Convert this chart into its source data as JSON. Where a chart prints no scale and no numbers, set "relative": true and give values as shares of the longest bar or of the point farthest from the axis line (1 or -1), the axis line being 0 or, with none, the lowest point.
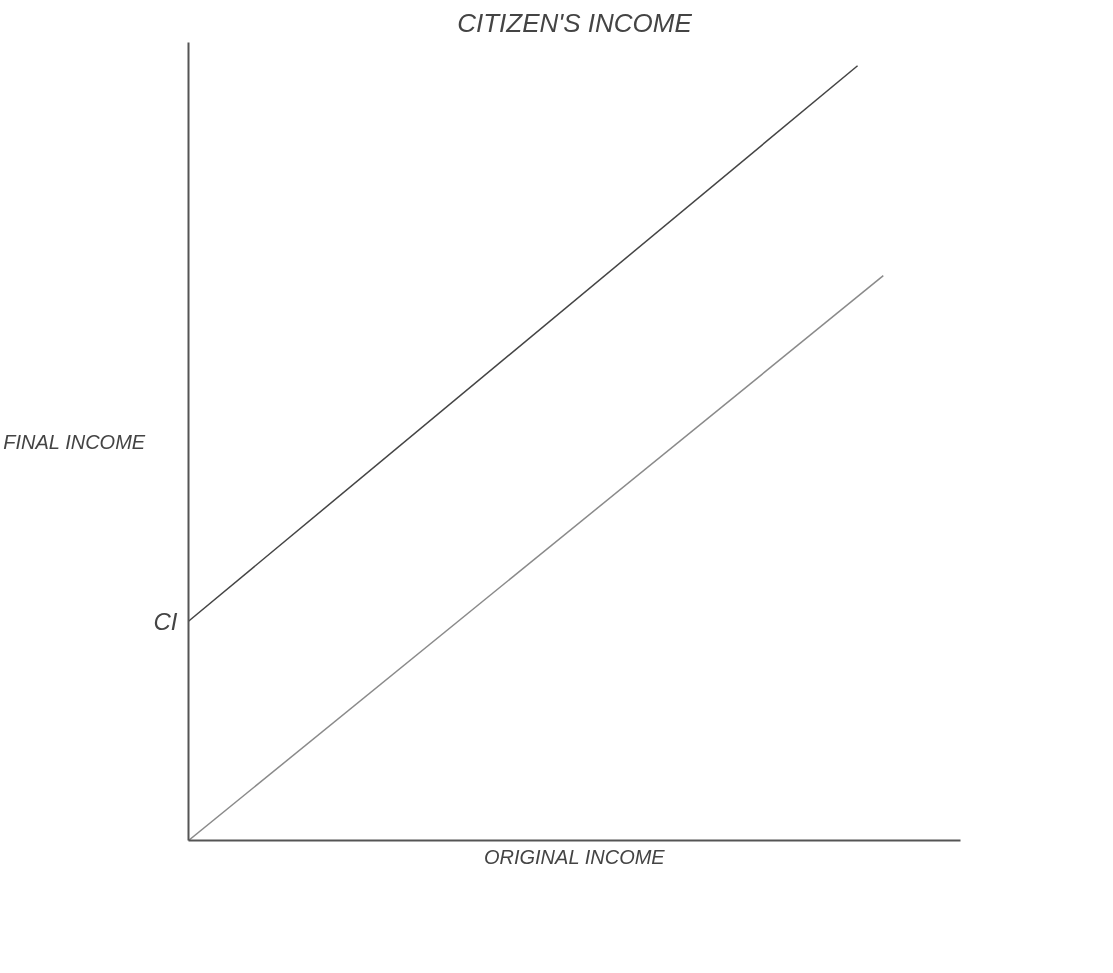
{
  "chart_data": {
    "type": "line",
    "title": "CITIZEN'S INCOME",
    "xlabel": "ORIGINAL INCOME",
    "ylabel": "FINAL INCOME",
    "relative": true,
    "categories": [
      null,
      null,
      null,
      null,
      null,
      null,
      null,
      null,
      null,
      null,
      null,
      null,
      null,
      null,
      null,
      null,
      null,
      null,
      null,
      null,
      null,
      null,
      null,
      null,
      null,
      null,
      null,
      null,
      null,
      null,
      null
    ],
    "series": [
      {
        "values": [
          0.283,
          null,
          null,
          null,
          null,
          null,
          null,
          null,
          null,
          null,
          null,
          null,
          null,
          null,
          null,
          null,
          null,
          null,
          null,
          null,
          null,
          null,
          null,
          null,
          null,
          null,
          1,
          null,
          null,
          null,
          null
        ],
        "color": "#444444"
      },
      {
        "values": [
          0,
          null,
          null,
          null,
          null,
          null,
          null,
          null,
          null,
          null,
          null,
          null,
          null,
          null,
          null,
          null,
          null,
          null,
          null,
          null,
          null,
          null,
          null,
          null,
          null,
          null,
          null,
          0.729,
          null,
          null,
          null
        ],
        "color": "#8a8a8a"
      }
    ],
    "annotations": [
      "CI"
    ]
  }
}
